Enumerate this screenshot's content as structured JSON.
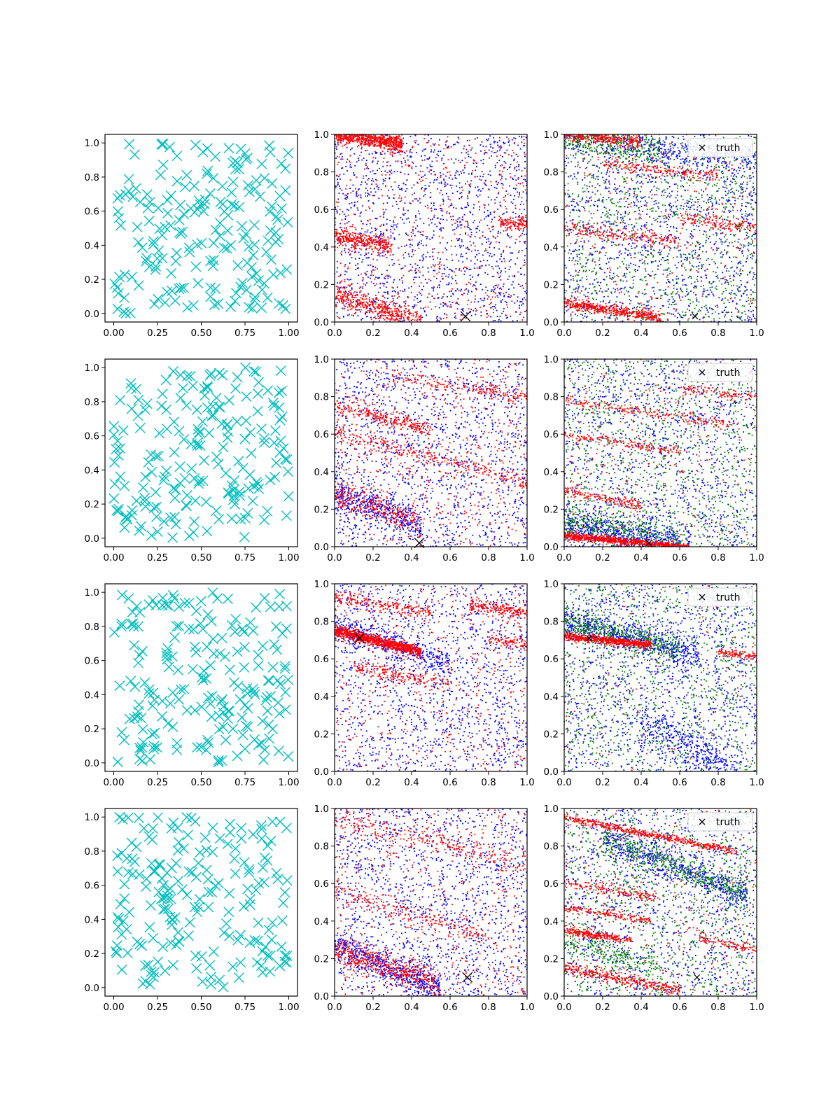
{
  "figure": {
    "rows": 4,
    "cols": 3
  },
  "chart_data": [
    {
      "row": 0,
      "col": 0,
      "type": "scatter",
      "marker": "x",
      "color": "#00bfbf",
      "n_points": 200,
      "seed": 11,
      "xlim": [
        -0.05,
        1.05
      ],
      "ylim": [
        -0.05,
        1.05
      ],
      "xticks": [
        "0.00",
        "0.25",
        "0.50",
        "0.75",
        "1.00"
      ],
      "yticks": [
        "0.0",
        "0.2",
        "0.4",
        "0.6",
        "0.8",
        "1.0"
      ]
    },
    {
      "row": 0,
      "col": 1,
      "type": "scatter",
      "seed": 12,
      "xlim": [
        0,
        1
      ],
      "ylim": [
        0,
        1
      ],
      "xticks": [
        "0.0",
        "0.2",
        "0.4",
        "0.6",
        "0.8",
        "1.0"
      ],
      "yticks": [
        "0.0",
        "0.2",
        "0.4",
        "0.6",
        "0.8",
        "1.0"
      ],
      "series": [
        {
          "color": "#0000ff",
          "uniform": 1500,
          "bands": []
        },
        {
          "color": "#ff0000",
          "uniform": 600,
          "bands": [
            {
              "y0": 1.0,
              "slope": -0.15,
              "spread": 0.02,
              "n": 700,
              "x": [
                0,
                0.35
              ]
            },
            {
              "y0": 0.46,
              "slope": -0.2,
              "spread": 0.025,
              "n": 350,
              "x": [
                0,
                0.3
              ]
            },
            {
              "y0": 0.15,
              "slope": -0.35,
              "spread": 0.03,
              "n": 450,
              "x": [
                0,
                0.45
              ]
            },
            {
              "y0": 0.62,
              "slope": -0.1,
              "spread": 0.02,
              "n": 120,
              "x": [
                0.85,
                1
              ]
            }
          ]
        }
      ],
      "truth": {
        "x": 0.68,
        "y": 0.03,
        "size": "large"
      }
    },
    {
      "row": 0,
      "col": 2,
      "type": "scatter",
      "seed": 13,
      "xlim": [
        0,
        1
      ],
      "ylim": [
        0,
        1
      ],
      "xticks": [
        "0.0",
        "0.2",
        "0.4",
        "0.6",
        "0.8",
        "1.0"
      ],
      "yticks": [
        "0.0",
        "0.2",
        "0.4",
        "0.6",
        "0.8",
        "1.0"
      ],
      "series": [
        {
          "color": "#0000ff",
          "uniform": 1400,
          "bands": [
            {
              "y0": 1.0,
              "slope": -0.15,
              "spread": 0.04,
              "n": 400,
              "x": [
                0,
                1
              ]
            }
          ]
        },
        {
          "color": "#008000",
          "uniform": 1000,
          "bands": [
            {
              "y0": 0.97,
              "slope": -0.1,
              "spread": 0.04,
              "n": 300,
              "x": [
                0,
                0.5
              ]
            }
          ]
        },
        {
          "color": "#ff0000",
          "uniform": 300,
          "bands": [
            {
              "y0": 1.0,
              "slope": -0.1,
              "spread": 0.015,
              "n": 300,
              "x": [
                0,
                0.4
              ]
            },
            {
              "y0": 0.87,
              "slope": -0.12,
              "spread": 0.015,
              "n": 200,
              "x": [
                0.2,
                0.8
              ]
            },
            {
              "y0": 0.5,
              "slope": -0.12,
              "spread": 0.02,
              "n": 200,
              "x": [
                0,
                0.6
              ]
            },
            {
              "y0": 0.1,
              "slope": -0.15,
              "spread": 0.015,
              "n": 450,
              "x": [
                0,
                0.5
              ]
            },
            {
              "y0": 0.65,
              "slope": -0.15,
              "spread": 0.02,
              "n": 150,
              "x": [
                0.6,
                1
              ]
            }
          ]
        }
      ],
      "truth": {
        "x": 0.68,
        "y": 0.03,
        "size": "small"
      },
      "legend": {
        "label": "truth",
        "position": "upper right"
      }
    },
    {
      "row": 1,
      "col": 0,
      "type": "scatter",
      "marker": "x",
      "color": "#00bfbf",
      "n_points": 200,
      "seed": 21,
      "xlim": [
        -0.05,
        1.05
      ],
      "ylim": [
        -0.05,
        1.05
      ],
      "xticks": [
        "0.00",
        "0.25",
        "0.50",
        "0.75",
        "1.00"
      ],
      "yticks": [
        "0.0",
        "0.2",
        "0.4",
        "0.6",
        "0.8",
        "1.0"
      ]
    },
    {
      "row": 1,
      "col": 1,
      "type": "scatter",
      "seed": 22,
      "xlim": [
        0,
        1
      ],
      "ylim": [
        0,
        1
      ],
      "xticks": [
        "0.0",
        "0.2",
        "0.4",
        "0.6",
        "0.8",
        "1.0"
      ],
      "yticks": [
        "0.0",
        "0.2",
        "0.4",
        "0.6",
        "0.8",
        "1.0"
      ],
      "series": [
        {
          "color": "#0000ff",
          "uniform": 1500,
          "bands": [
            {
              "y0": 0.28,
              "slope": -0.35,
              "spread": 0.04,
              "n": 400,
              "x": [
                0,
                0.45
              ]
            }
          ]
        },
        {
          "color": "#ff0000",
          "uniform": 600,
          "bands": [
            {
              "y0": 0.75,
              "slope": -0.25,
              "spread": 0.02,
              "n": 250,
              "x": [
                0,
                0.5
              ]
            },
            {
              "y0": 0.6,
              "slope": -0.25,
              "spread": 0.025,
              "n": 300,
              "x": [
                0,
                1
              ]
            },
            {
              "y0": 0.28,
              "slope": -0.35,
              "spread": 0.04,
              "n": 300,
              "x": [
                0,
                0.45
              ]
            },
            {
              "y0": 0.95,
              "slope": -0.15,
              "spread": 0.02,
              "n": 200,
              "x": [
                0.3,
                1
              ]
            }
          ]
        }
      ],
      "truth": {
        "x": 0.44,
        "y": 0.02,
        "size": "large"
      }
    },
    {
      "row": 1,
      "col": 2,
      "type": "scatter",
      "seed": 23,
      "xlim": [
        0,
        1
      ],
      "ylim": [
        0,
        1
      ],
      "xticks": [
        "0.0",
        "0.2",
        "0.4",
        "0.6",
        "0.8",
        "1.0"
      ],
      "yticks": [
        "0.0",
        "0.2",
        "0.4",
        "0.6",
        "0.8",
        "1.0"
      ],
      "series": [
        {
          "color": "#0000ff",
          "uniform": 1300,
          "bands": [
            {
              "y0": 0.12,
              "slope": -0.18,
              "spread": 0.04,
              "n": 500,
              "x": [
                0,
                0.6
              ]
            }
          ]
        },
        {
          "color": "#008000",
          "uniform": 1000,
          "bands": [
            {
              "y0": 0.15,
              "slope": -0.2,
              "spread": 0.04,
              "n": 300,
              "x": [
                0,
                0.6
              ]
            }
          ]
        },
        {
          "color": "#ff0000",
          "uniform": 250,
          "bands": [
            {
              "y0": 0.06,
              "slope": -0.1,
              "spread": 0.01,
              "n": 800,
              "x": [
                0,
                0.65
              ]
            },
            {
              "y0": 0.78,
              "slope": -0.15,
              "spread": 0.015,
              "n": 200,
              "x": [
                0,
                0.9
              ]
            },
            {
              "y0": 0.6,
              "slope": -0.15,
              "spread": 0.015,
              "n": 150,
              "x": [
                0,
                0.6
              ]
            },
            {
              "y0": 0.3,
              "slope": -0.2,
              "spread": 0.015,
              "n": 150,
              "x": [
                0,
                0.4
              ]
            },
            {
              "y0": 0.9,
              "slope": -0.1,
              "spread": 0.015,
              "n": 100,
              "x": [
                0.6,
                1
              ]
            }
          ]
        }
      ],
      "truth": {
        "x": 0.44,
        "y": 0.02,
        "size": "small"
      },
      "legend": {
        "label": "truth",
        "position": "upper right"
      }
    },
    {
      "row": 2,
      "col": 0,
      "type": "scatter",
      "marker": "x",
      "color": "#00bfbf",
      "n_points": 200,
      "seed": 31,
      "xlim": [
        -0.05,
        1.05
      ],
      "ylim": [
        -0.05,
        1.05
      ],
      "xticks": [
        "0.00",
        "0.25",
        "0.50",
        "0.75",
        "1.00"
      ],
      "yticks": [
        "0.0",
        "0.2",
        "0.4",
        "0.6",
        "0.8",
        "1.0"
      ]
    },
    {
      "row": 2,
      "col": 1,
      "type": "scatter",
      "seed": 32,
      "xlim": [
        0,
        1
      ],
      "ylim": [
        0,
        1
      ],
      "xticks": [
        "0.0",
        "0.2",
        "0.4",
        "0.6",
        "0.8",
        "1.0"
      ],
      "yticks": [
        "0.0",
        "0.2",
        "0.4",
        "0.6",
        "0.8",
        "1.0"
      ],
      "series": [
        {
          "color": "#0000ff",
          "uniform": 1500,
          "bands": [
            {
              "y0": 0.78,
              "slope": -0.35,
              "spread": 0.035,
              "n": 400,
              "x": [
                0,
                0.6
              ]
            }
          ]
        },
        {
          "color": "#ff0000",
          "uniform": 500,
          "bands": [
            {
              "y0": 0.75,
              "slope": -0.25,
              "spread": 0.015,
              "n": 900,
              "x": [
                0,
                0.45
              ]
            },
            {
              "y0": 0.92,
              "slope": -0.15,
              "spread": 0.02,
              "n": 200,
              "x": [
                0,
                0.5
              ]
            },
            {
              "y0": 0.58,
              "slope": -0.2,
              "spread": 0.02,
              "n": 200,
              "x": [
                0.1,
                0.6
              ]
            },
            {
              "y0": 0.95,
              "slope": -0.1,
              "spread": 0.02,
              "n": 200,
              "x": [
                0.7,
                1
              ]
            },
            {
              "y0": 0.78,
              "slope": -0.1,
              "spread": 0.015,
              "n": 100,
              "x": [
                0.8,
                1
              ]
            }
          ]
        }
      ],
      "truth": {
        "x": 0.13,
        "y": 0.71,
        "size": "large"
      }
    },
    {
      "row": 2,
      "col": 2,
      "type": "scatter",
      "seed": 33,
      "xlim": [
        0,
        1
      ],
      "ylim": [
        0,
        1
      ],
      "xticks": [
        "0.0",
        "0.2",
        "0.4",
        "0.6",
        "0.8",
        "1.0"
      ],
      "yticks": [
        "0.0",
        "0.2",
        "0.4",
        "0.6",
        "0.8",
        "1.0"
      ],
      "series": [
        {
          "color": "#0000ff",
          "uniform": 1300,
          "bands": [
            {
              "y0": 0.8,
              "slope": -0.25,
              "spread": 0.04,
              "n": 600,
              "x": [
                0,
                0.7
              ]
            },
            {
              "y0": 0.45,
              "slope": -0.5,
              "spread": 0.06,
              "n": 400,
              "x": [
                0.4,
                0.9
              ]
            }
          ]
        },
        {
          "color": "#008000",
          "uniform": 1000,
          "bands": [
            {
              "y0": 0.8,
              "slope": -0.25,
              "spread": 0.035,
              "n": 400,
              "x": [
                0,
                0.6
              ]
            }
          ]
        },
        {
          "color": "#ff0000",
          "uniform": 100,
          "bands": [
            {
              "y0": 0.72,
              "slope": -0.1,
              "spread": 0.01,
              "n": 600,
              "x": [
                0,
                0.45
              ]
            },
            {
              "y0": 0.76,
              "slope": -0.15,
              "spread": 0.01,
              "n": 100,
              "x": [
                0.8,
                1
              ]
            }
          ]
        }
      ],
      "truth": {
        "x": 0.13,
        "y": 0.71,
        "size": "small"
      },
      "legend": {
        "label": "truth",
        "position": "upper right"
      }
    },
    {
      "row": 3,
      "col": 0,
      "type": "scatter",
      "marker": "x",
      "color": "#00bfbf",
      "n_points": 200,
      "seed": 41,
      "xlim": [
        -0.05,
        1.05
      ],
      "ylim": [
        -0.05,
        1.05
      ],
      "xticks": [
        "0.00",
        "0.25",
        "0.50",
        "0.75",
        "1.00"
      ],
      "yticks": [
        "0.0",
        "0.2",
        "0.4",
        "0.6",
        "0.8",
        "1.0"
      ]
    },
    {
      "row": 3,
      "col": 1,
      "type": "scatter",
      "seed": 42,
      "xlim": [
        0,
        1
      ],
      "ylim": [
        0,
        1
      ],
      "xticks": [
        "0.0",
        "0.2",
        "0.4",
        "0.6",
        "0.8",
        "1.0"
      ],
      "yticks": [
        "0.0",
        "0.2",
        "0.4",
        "0.6",
        "0.8",
        "1.0"
      ],
      "series": [
        {
          "color": "#0000ff",
          "uniform": 1500,
          "bands": [
            {
              "y0": 0.28,
              "slope": -0.45,
              "spread": 0.04,
              "n": 500,
              "x": [
                0,
                0.55
              ]
            }
          ]
        },
        {
          "color": "#ff0000",
          "uniform": 600,
          "bands": [
            {
              "y0": 0.25,
              "slope": -0.35,
              "spread": 0.04,
              "n": 500,
              "x": [
                0,
                0.55
              ]
            },
            {
              "y0": 0.95,
              "slope": -0.25,
              "spread": 0.03,
              "n": 250,
              "x": [
                0,
                1
              ]
            },
            {
              "y0": 0.55,
              "slope": -0.3,
              "spread": 0.03,
              "n": 200,
              "x": [
                0,
                0.8
              ]
            }
          ]
        }
      ],
      "truth": {
        "x": 0.69,
        "y": 0.1,
        "size": "large"
      }
    },
    {
      "row": 3,
      "col": 2,
      "type": "scatter",
      "seed": 43,
      "xlim": [
        0,
        1
      ],
      "ylim": [
        0,
        1
      ],
      "xticks": [
        "0.0",
        "0.2",
        "0.4",
        "0.6",
        "0.8",
        "1.0"
      ],
      "yticks": [
        "0.0",
        "0.2",
        "0.4",
        "0.6",
        "0.8",
        "1.0"
      ],
      "series": [
        {
          "color": "#0000ff",
          "uniform": 1300,
          "bands": [
            {
              "y0": 0.92,
              "slope": -0.4,
              "spread": 0.04,
              "n": 500,
              "x": [
                0.2,
                0.95
              ]
            }
          ]
        },
        {
          "color": "#008000",
          "uniform": 1000,
          "bands": [
            {
              "y0": 0.92,
              "slope": -0.4,
              "spread": 0.035,
              "n": 400,
              "x": [
                0.2,
                0.95
              ]
            },
            {
              "y0": 0.3,
              "slope": -0.3,
              "spread": 0.04,
              "n": 200,
              "x": [
                0,
                0.5
              ]
            }
          ]
        },
        {
          "color": "#ff0000",
          "uniform": 250,
          "bands": [
            {
              "y0": 0.95,
              "slope": -0.2,
              "spread": 0.01,
              "n": 500,
              "x": [
                0,
                0.9
              ]
            },
            {
              "y0": 0.35,
              "slope": -0.15,
              "spread": 0.01,
              "n": 250,
              "x": [
                0,
                0.35
              ]
            },
            {
              "y0": 0.47,
              "slope": -0.15,
              "spread": 0.01,
              "n": 150,
              "x": [
                0,
                0.45
              ]
            },
            {
              "y0": 0.15,
              "slope": -0.2,
              "spread": 0.015,
              "n": 350,
              "x": [
                0,
                0.6
              ]
            },
            {
              "y0": 0.6,
              "slope": -0.15,
              "spread": 0.015,
              "n": 150,
              "x": [
                0,
                0.5
              ]
            },
            {
              "y0": 0.45,
              "slope": -0.2,
              "spread": 0.015,
              "n": 100,
              "x": [
                0.7,
                1
              ]
            }
          ]
        }
      ],
      "truth": {
        "x": 0.69,
        "y": 0.1,
        "size": "small"
      },
      "legend": {
        "label": "truth",
        "position": "upper right"
      }
    }
  ]
}
